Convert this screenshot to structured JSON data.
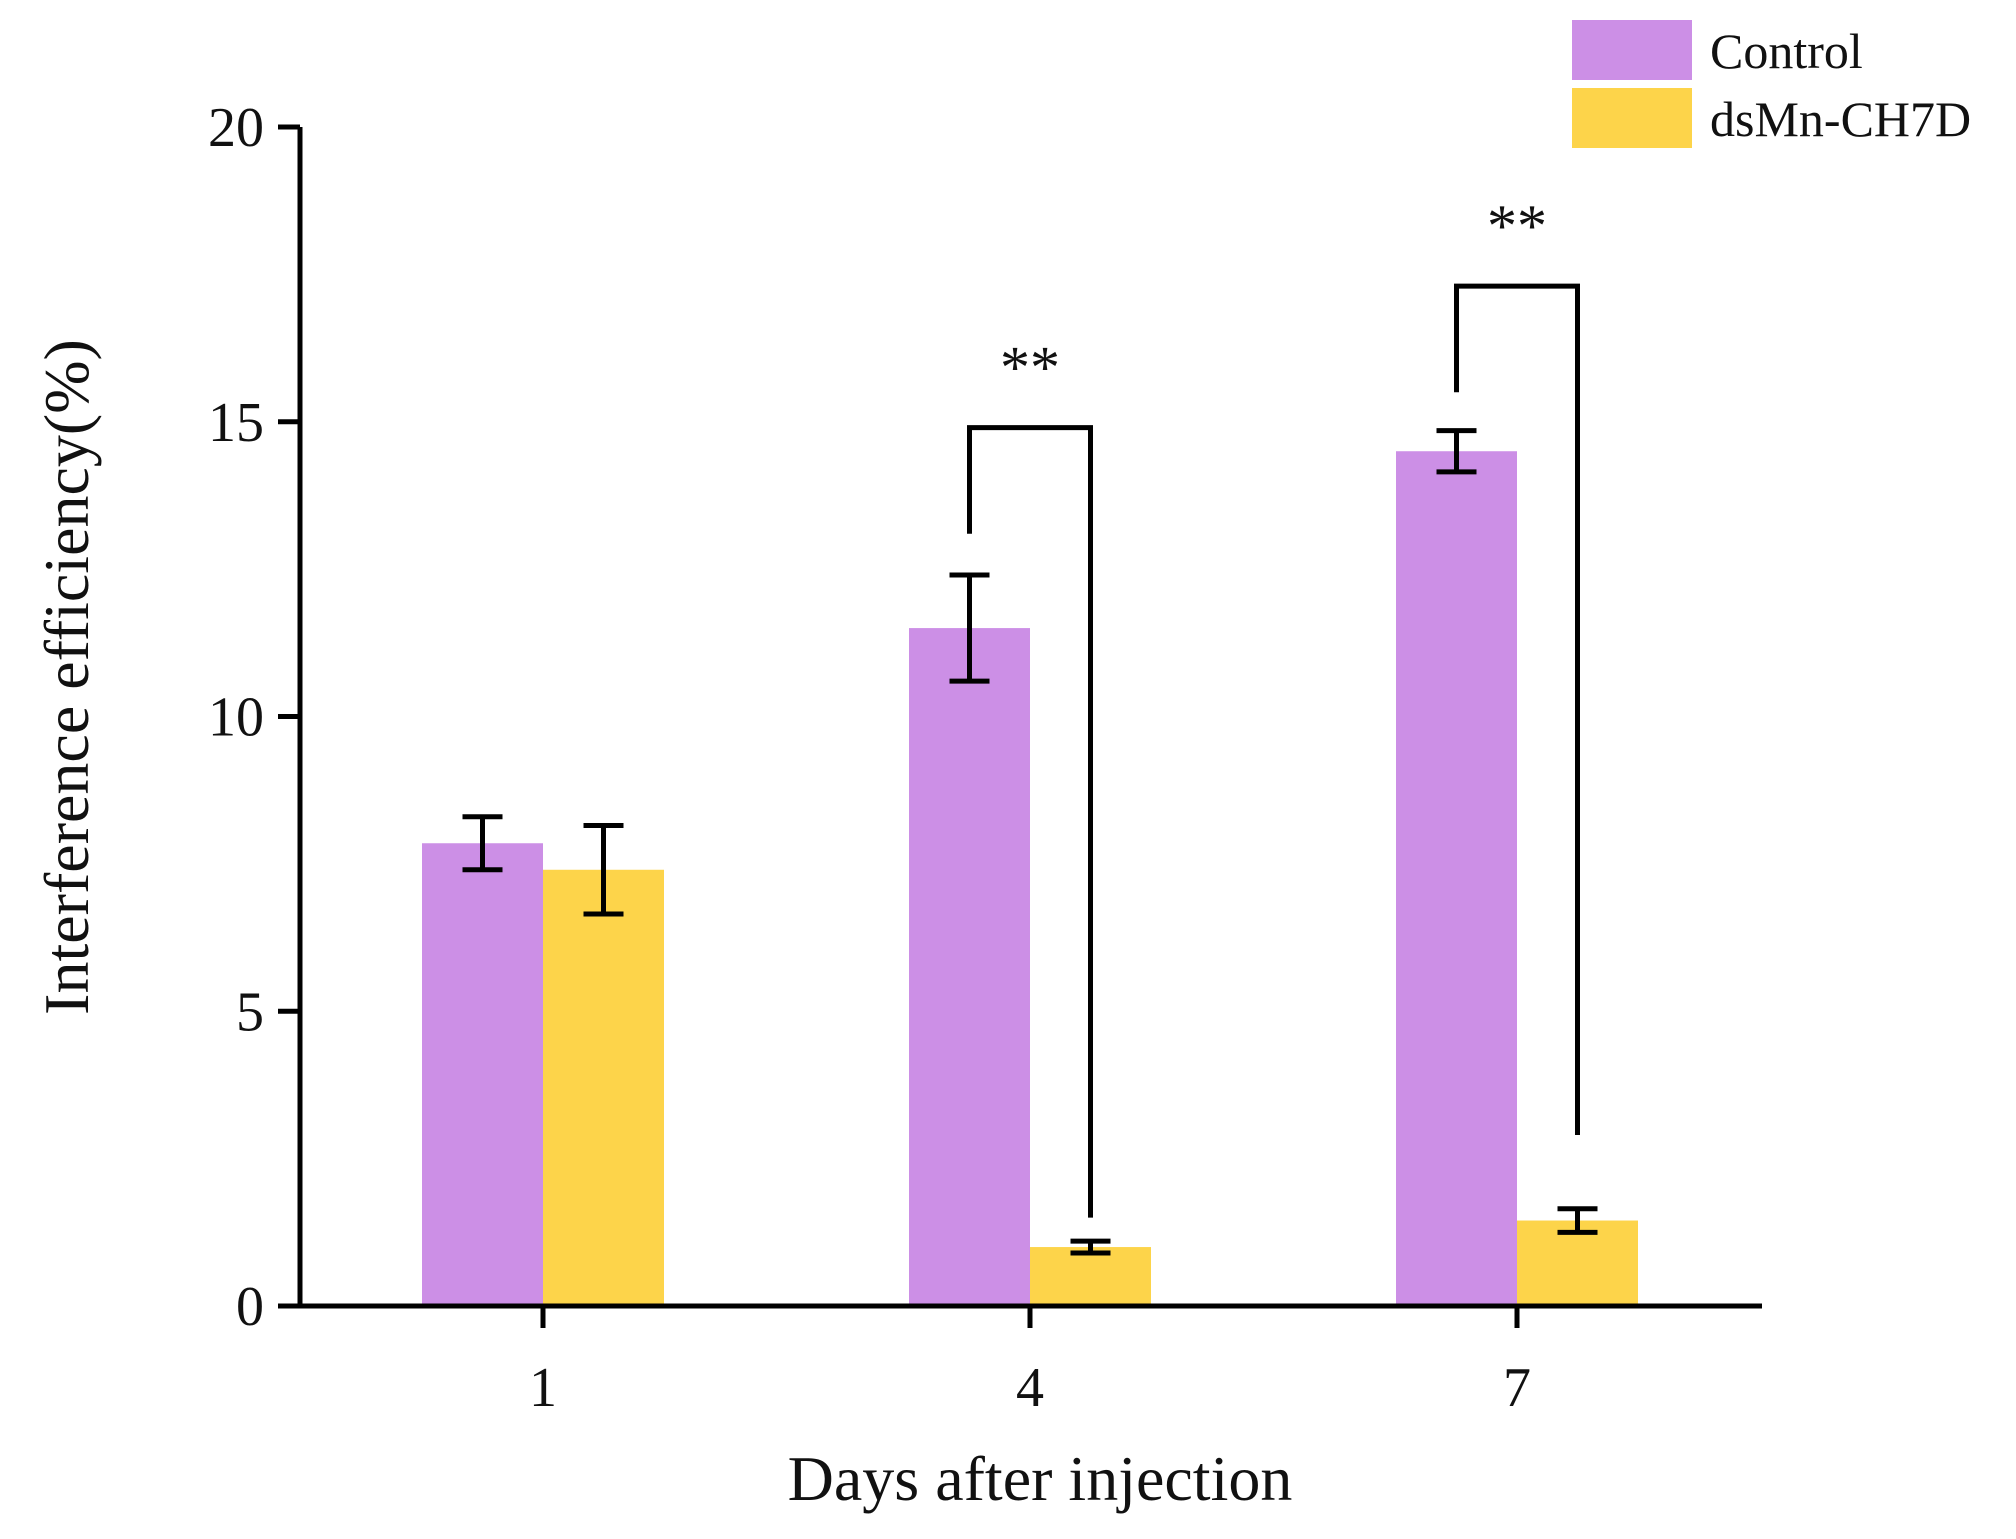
{
  "chart_data": {
    "type": "bar",
    "title": "",
    "xlabel": "Days after injection",
    "ylabel": "Interference efficiency(%)",
    "categories": [
      "1",
      "4",
      "7"
    ],
    "ylim": [
      0,
      20
    ],
    "yticks": [
      "0",
      "5",
      "10",
      "15",
      "20"
    ],
    "grid": false,
    "legend_position": "top-right",
    "series": [
      {
        "name": "Control",
        "color": "#cc8fe6",
        "values": [
          7.85,
          11.5,
          14.5
        ],
        "errors": [
          0.45,
          0.9,
          0.35
        ]
      },
      {
        "name": "dsMn-CH7D",
        "color": "#fdd44a",
        "values": [
          7.4,
          1.0,
          1.45
        ],
        "errors": [
          0.75,
          0.1,
          0.2
        ]
      }
    ],
    "annotations": [
      {
        "category": "4",
        "label": "**",
        "bracket_top": 14.9,
        "left_end": 13.1,
        "right_end": 1.5
      },
      {
        "category": "7",
        "label": "**",
        "bracket_top": 17.3,
        "left_end": 15.5,
        "right_end": 2.9
      }
    ]
  }
}
